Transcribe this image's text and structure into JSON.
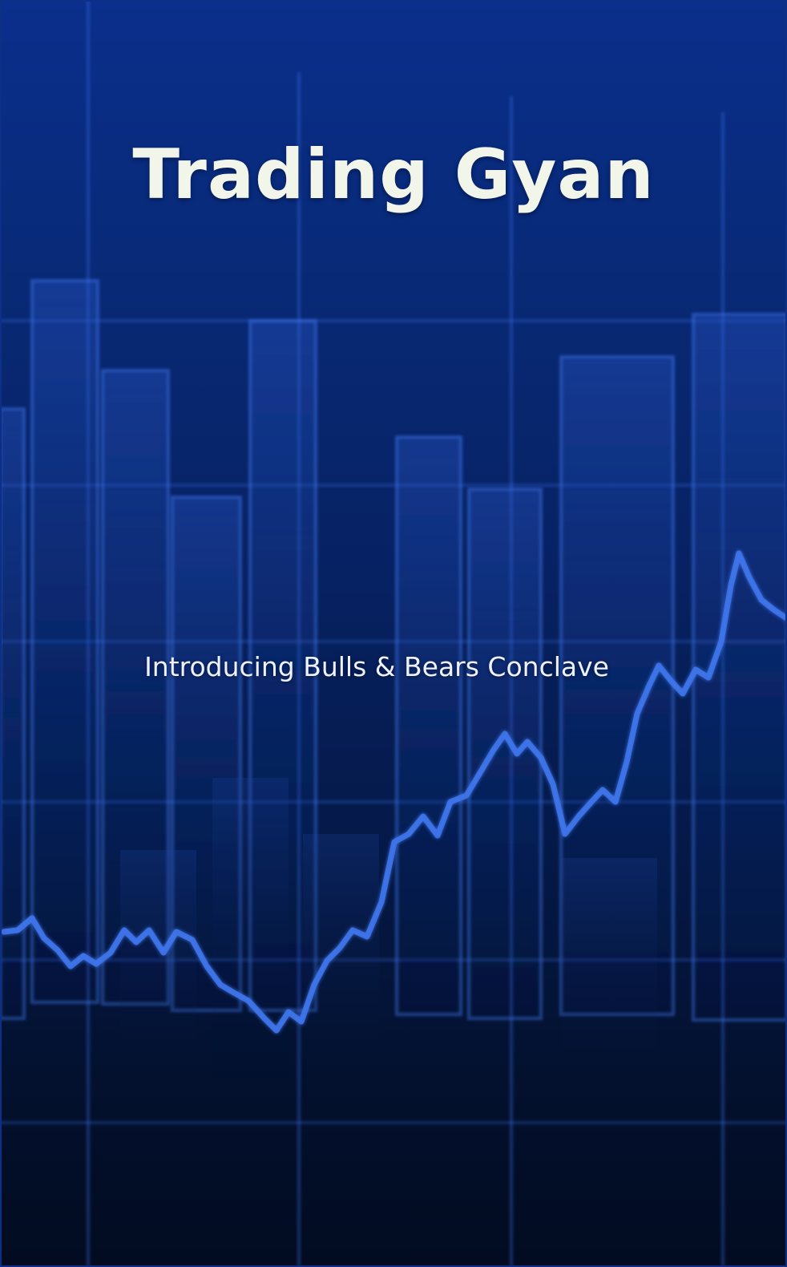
{
  "splash": {
    "title": "Trading Gyan",
    "subtitle": "Introducing Bulls & Bears Conclave"
  },
  "background": {
    "description_icon": "stock-chart-background",
    "accent_color": "#3a6fe8",
    "base_color": "#0a2f8c",
    "bottom_color": "#020b20"
  }
}
